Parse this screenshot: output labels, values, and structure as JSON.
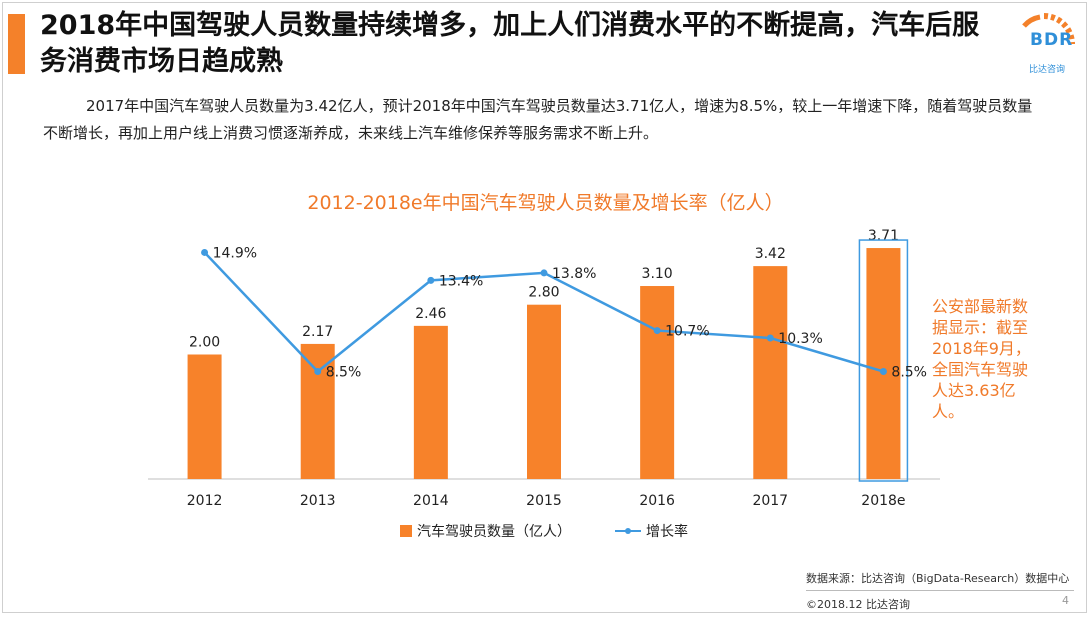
{
  "header": {
    "title": "2018年中国驾驶人员数量持续增多，加上人们消费水平的不断提高，汽车后服务消费市场日趋成熟",
    "logo_text": "BDR",
    "logo_sub": "比达咨询",
    "accent_color": "#f4812a"
  },
  "intro": "2017年中国汽车驾驶人员数量为3.42亿人，预计2018年中国汽车驾驶员数量达3.71亿人，增速为8.5%，较上一年增速下降，随着驾驶员数量不断增长，再加上用户线上消费习惯逐渐养成，未来线上汽车维修保养等服务需求不断上升。",
  "chart_data": {
    "type": "bar",
    "title": "2012-2018e年中国汽车驾驶人员数量及增长率（亿人）",
    "categories": [
      "2012",
      "2013",
      "2014",
      "2015",
      "2016",
      "2017",
      "2018e"
    ],
    "series": [
      {
        "name": "汽车驾驶员数量（亿人）",
        "type": "bar",
        "color": "#f7822a",
        "values": [
          2.0,
          2.17,
          2.46,
          2.8,
          3.1,
          3.42,
          3.71
        ],
        "labels": [
          "2.00",
          "2.17",
          "2.46",
          "2.80",
          "3.10",
          "3.42",
          "3.71"
        ]
      },
      {
        "name": "增长率",
        "type": "line",
        "color": "#3f9ae0",
        "values": [
          14.9,
          8.5,
          13.4,
          13.8,
          10.7,
          10.3,
          8.5
        ],
        "labels": [
          "14.9%",
          "8.5%",
          "13.4%",
          "13.8%",
          "10.7%",
          "10.3%",
          "8.5%"
        ]
      }
    ],
    "ylim": [
      0,
      4
    ],
    "y2lim": [
      6,
      16
    ],
    "highlight_category": "2018e",
    "highlight_color": "#3f9ae0",
    "legend_position": "bottom"
  },
  "annotation": "公安部最新数据显示：截至2018年9月，全国汽车驾驶人达3.63亿人。",
  "footer": {
    "source": "数据来源：比达咨询（BigData-Research）数据中心",
    "copyright": "©2018.12  比达咨询",
    "page": "4"
  }
}
